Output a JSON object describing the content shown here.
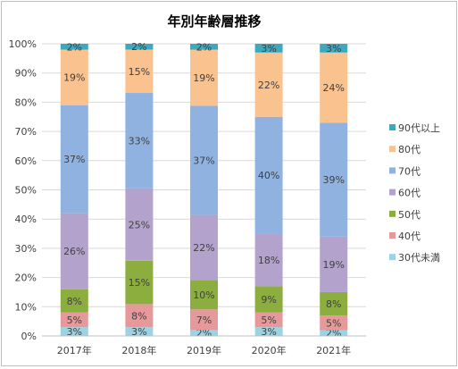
{
  "chart_data": {
    "type": "bar",
    "stacked": true,
    "percent_stacked": true,
    "title": "年別年齢層推移",
    "categories": [
      "2017年",
      "2018年",
      "2019年",
      "2020年",
      "2021年"
    ],
    "y_ticks": [
      "0%",
      "10%",
      "20%",
      "30%",
      "40%",
      "50%",
      "60%",
      "70%",
      "80%",
      "90%",
      "100%"
    ],
    "ylim": [
      0,
      100
    ],
    "legend_position": "right",
    "series": [
      {
        "name": "30代未満",
        "color": "#9bd3e3",
        "values": [
          3,
          3,
          2,
          3,
          2
        ]
      },
      {
        "name": "40代",
        "color": "#e6999a",
        "values": [
          5,
          8,
          7,
          5,
          5
        ]
      },
      {
        "name": "50代",
        "color": "#8cae3e",
        "values": [
          8,
          15,
          10,
          9,
          8
        ]
      },
      {
        "name": "60代",
        "color": "#b3a3cc",
        "values": [
          26,
          25,
          22,
          18,
          19
        ]
      },
      {
        "name": "70代",
        "color": "#8fb2e0",
        "values": [
          37,
          33,
          37,
          40,
          39
        ]
      },
      {
        "name": "80代",
        "color": "#fac28e",
        "values": [
          19,
          15,
          19,
          22,
          24
        ]
      },
      {
        "name": "90代以上",
        "color": "#3ea8bd",
        "values": [
          2,
          2,
          2,
          3,
          3
        ]
      }
    ]
  }
}
